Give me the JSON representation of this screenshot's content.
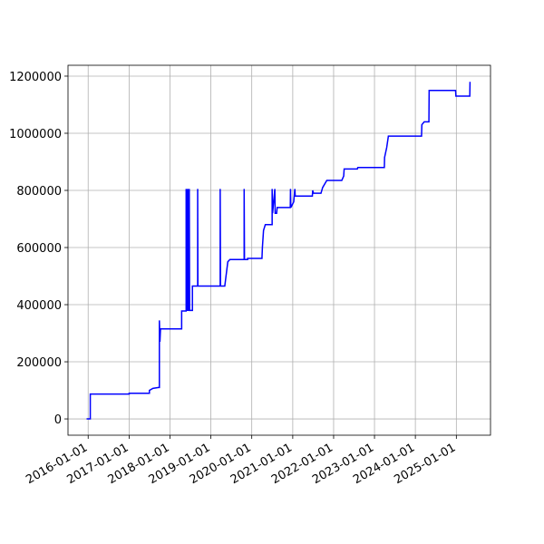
{
  "chart_data": {
    "type": "line",
    "color": "#0000ff",
    "grid": true,
    "x": [
      "2015-12-18",
      "2016-01-20",
      "2016-01-20",
      "2017-01-01",
      "2017-01-01",
      "2017-07-01",
      "2017-07-01",
      "2017-08-01",
      "2017-09-20",
      "2017-09-28",
      "2017-09-28",
      "2017-10-03",
      "2017-10-08",
      "2018-04-15",
      "2018-04-15",
      "2018-05-25",
      "2018-05-25",
      "2018-05-28",
      "2018-06-05",
      "2018-06-08",
      "2018-06-14",
      "2018-06-17",
      "2018-06-22",
      "2018-06-25",
      "2018-07-20",
      "2018-07-20",
      "2018-09-05",
      "2018-09-05",
      "2018-09-07",
      "2019-03-25",
      "2019-03-25",
      "2019-03-28",
      "2019-05-05",
      "2019-06-01",
      "2019-06-20",
      "2019-10-25",
      "2019-10-25",
      "2019-10-28",
      "2019-11-25",
      "2019-11-25",
      "2020-04-01",
      "2020-04-05",
      "2020-04-15",
      "2020-05-01",
      "2020-07-01",
      "2020-07-01",
      "2020-07-05",
      "2020-07-25",
      "2020-07-28",
      "2020-08-10",
      "2020-08-15",
      "2020-12-10",
      "2020-12-12",
      "2020-12-15",
      "2021-01-10",
      "2021-01-20",
      "2021-01-23",
      "2021-06-25",
      "2021-06-28",
      "2021-07-05",
      "2021-09-10",
      "2021-09-25",
      "2021-11-01",
      "2022-03-15",
      "2022-04-01",
      "2022-04-05",
      "2022-08-01",
      "2022-08-05",
      "2023-03-30",
      "2023-04-01",
      "2023-04-20",
      "2023-05-05",
      "2024-02-25",
      "2024-02-28",
      "2024-03-20",
      "2024-05-01",
      "2024-05-03",
      "2024-12-25",
      "2024-12-28",
      "2025-05-01",
      "2025-05-03"
    ],
    "values": [
      0,
      0,
      87000,
      87000,
      90000,
      90000,
      100000,
      107000,
      110000,
      110000,
      345000,
      270000,
      315000,
      315000,
      378000,
      378000,
      805000,
      378000,
      805000,
      378000,
      805000,
      378000,
      805000,
      380000,
      380000,
      465000,
      465000,
      805000,
      465000,
      465000,
      805000,
      465000,
      465000,
      550000,
      558000,
      558000,
      805000,
      558000,
      558000,
      562000,
      562000,
      600000,
      660000,
      680000,
      680000,
      805000,
      720000,
      805000,
      720000,
      720000,
      740000,
      740000,
      805000,
      740000,
      760000,
      805000,
      780000,
      780000,
      800000,
      790000,
      790000,
      810000,
      835000,
      835000,
      850000,
      875000,
      875000,
      880000,
      880000,
      915000,
      950000,
      990000,
      990000,
      1030000,
      1040000,
      1040000,
      1150000,
      1150000,
      1130000,
      1130000,
      1180000
    ],
    "xlim": [
      "2015-07-05",
      "2025-11-02"
    ],
    "xticks": [
      "2016-01-01",
      "2017-01-01",
      "2018-01-01",
      "2019-01-01",
      "2020-01-01",
      "2021-01-01",
      "2022-01-01",
      "2023-01-01",
      "2024-01-01",
      "2025-01-01"
    ],
    "ylim": [
      -57000,
      1238000
    ],
    "yticks": [
      0,
      200000,
      400000,
      600000,
      800000,
      1000000,
      1200000
    ]
  }
}
